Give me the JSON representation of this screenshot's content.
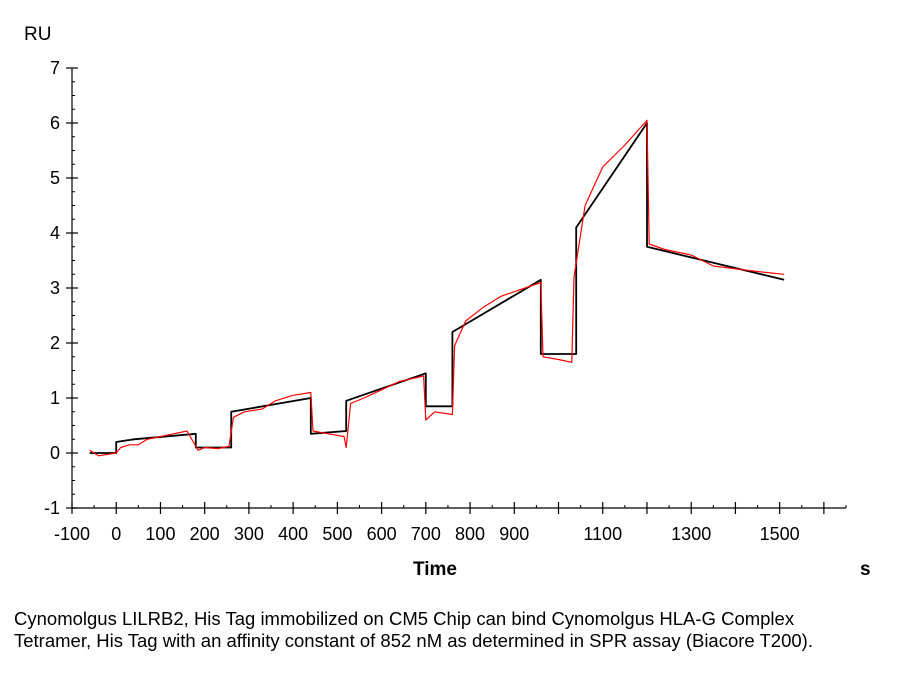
{
  "chart_data": {
    "type": "line",
    "title": "",
    "ylabel": "RU",
    "xlabel": "Time",
    "x_unit": "s",
    "xlim": [
      -100,
      1650
    ],
    "ylim": [
      -1,
      7
    ],
    "x_ticks": [
      -100,
      0,
      100,
      200,
      300,
      400,
      500,
      600,
      700,
      800,
      900,
      1100,
      1300,
      1500
    ],
    "y_ticks": [
      -1,
      0,
      1,
      2,
      3,
      4,
      5,
      6,
      7
    ],
    "grid": false,
    "series": [
      {
        "color": "#000000",
        "x": [
          -60,
          0,
          0,
          40,
          180,
          180,
          260,
          260,
          440,
          440,
          520,
          520,
          700,
          700,
          760,
          760,
          960,
          960,
          1040,
          1040,
          1200,
          1200,
          1510
        ],
        "y": [
          0.0,
          0.0,
          0.2,
          0.25,
          0.35,
          0.1,
          0.1,
          0.75,
          1.0,
          0.35,
          0.4,
          0.95,
          1.45,
          0.85,
          0.85,
          2.2,
          3.15,
          1.8,
          1.8,
          4.1,
          6.0,
          3.75,
          3.15
        ]
      },
      {
        "color": "#ff0000",
        "x": [
          -60,
          -40,
          0,
          10,
          30,
          50,
          70,
          100,
          130,
          160,
          185,
          200,
          230,
          255,
          265,
          290,
          330,
          360,
          400,
          440,
          445,
          480,
          515,
          520,
          530,
          560,
          600,
          640,
          695,
          700,
          720,
          760,
          765,
          790,
          830,
          870,
          960,
          965,
          1000,
          1030,
          1035,
          1060,
          1100,
          1150,
          1200,
          1205,
          1240,
          1300,
          1350,
          1400,
          1450,
          1510
        ],
        "y": [
          0.05,
          -0.05,
          0.0,
          0.1,
          0.15,
          0.15,
          0.25,
          0.3,
          0.35,
          0.4,
          0.05,
          0.1,
          0.08,
          0.12,
          0.65,
          0.75,
          0.8,
          0.95,
          1.05,
          1.1,
          0.4,
          0.35,
          0.3,
          0.1,
          0.9,
          1.0,
          1.15,
          1.3,
          1.4,
          0.6,
          0.75,
          0.7,
          1.95,
          2.4,
          2.65,
          2.85,
          3.1,
          1.75,
          1.7,
          1.65,
          3.2,
          4.5,
          5.2,
          5.6,
          6.05,
          3.8,
          3.7,
          3.6,
          3.4,
          3.35,
          3.3,
          3.25
        ]
      }
    ]
  },
  "caption": "Cynomolgus LILRB2, His Tag immobilized on CM5 Chip can bind Cynomolgus HLA-G Complex Tetramer, His Tag with an affinity constant of 852 nM as determined in SPR assay (Biacore T200)."
}
